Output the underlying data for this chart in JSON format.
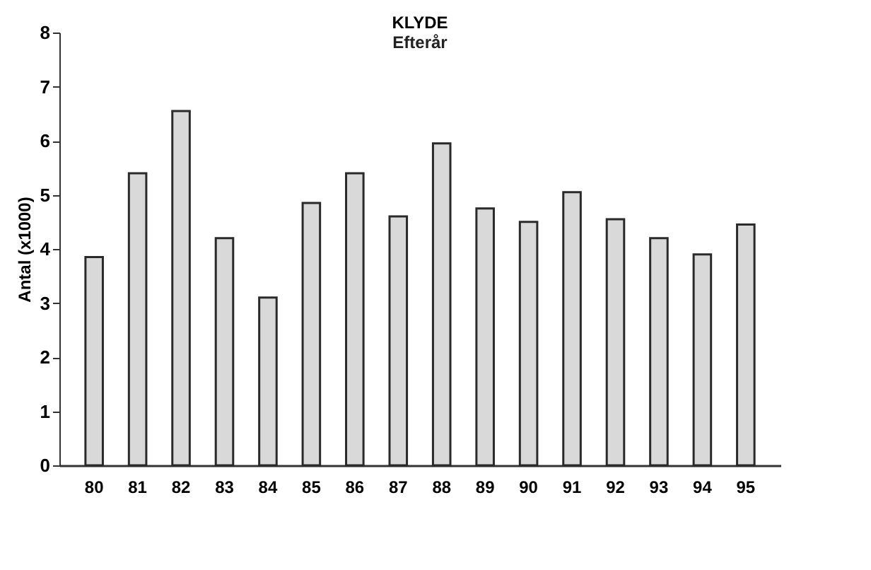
{
  "chart_data": {
    "type": "bar",
    "title": "KLYDE",
    "subtitle": "Efterår",
    "ylabel": "Antal (x1000)",
    "categories": [
      "80",
      "81",
      "82",
      "83",
      "84",
      "85",
      "86",
      "87",
      "88",
      "89",
      "90",
      "91",
      "92",
      "93",
      "94",
      "95"
    ],
    "values": [
      3.85,
      5.4,
      6.55,
      4.2,
      3.1,
      4.85,
      5.4,
      4.6,
      5.95,
      4.75,
      4.5,
      5.05,
      4.55,
      4.2,
      3.9,
      4.45
    ],
    "color": "#d9d9d9",
    "ylim": [
      0,
      8
    ],
    "yticks": [
      0,
      1,
      2,
      3,
      4,
      5,
      6,
      7,
      8
    ],
    "grid": false
  }
}
